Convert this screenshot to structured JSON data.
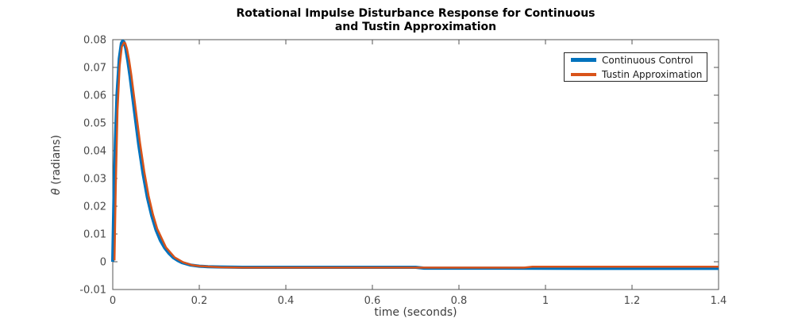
{
  "title": {
    "line1": "Rotational Impulse Disturbance Response for Continuous",
    "line2": "and Tustin Approximation"
  },
  "axes": {
    "x_label": "time (seconds)",
    "y_label_symbol": "θ",
    "y_label_rest": " (radians)",
    "axis_color": "#545454",
    "tick_label_color": "#494949"
  },
  "legend": {
    "entries": [
      {
        "label": "Continuous Control",
        "color": "#0072BD",
        "swatch_thickness": 5
      },
      {
        "label": "Tustin Approximation",
        "color": "#D95319",
        "swatch_thickness": 4
      }
    ]
  },
  "chart_data": {
    "type": "line",
    "title": "Rotational Impulse Disturbance Response for Continuous and Tustin Approximation",
    "xlabel": "time (seconds)",
    "ylabel": "θ (radians)",
    "xlim": [
      0,
      1.4
    ],
    "ylim": [
      -0.01,
      0.08
    ],
    "grid": false,
    "legend_position": "northeast",
    "x_ticks": {
      "values": [
        0,
        0.2,
        0.4,
        0.6,
        0.8,
        1,
        1.2,
        1.4
      ],
      "labels": [
        "0",
        "0.2",
        "0.4",
        "0.6",
        "0.8",
        "1",
        "1.2",
        "1.4"
      ]
    },
    "y_ticks": {
      "values": [
        -0.01,
        0,
        0.01,
        0.02,
        0.03,
        0.04,
        0.05,
        0.06,
        0.07,
        0.08
      ],
      "labels": [
        "-0.01",
        "0",
        "0.01",
        "0.02",
        "0.03",
        "0.04",
        "0.05",
        "0.06",
        "0.07",
        "0.08"
      ]
    },
    "series": [
      {
        "name": "Continuous Control",
        "slug": "continuous-control",
        "color": "#0072BD",
        "width": 4,
        "points": [
          [
            0,
            0
          ],
          [
            0.003,
            0.0245
          ],
          [
            0.006,
            0.0432
          ],
          [
            0.01,
            0.0604
          ],
          [
            0.015,
            0.0731
          ],
          [
            0.02,
            0.0787
          ],
          [
            0.023,
            0.0795
          ],
          [
            0.026,
            0.0791
          ],
          [
            0.03,
            0.077
          ],
          [
            0.035,
            0.0722
          ],
          [
            0.04,
            0.0668
          ],
          [
            0.05,
            0.0543
          ],
          [
            0.06,
            0.0422
          ],
          [
            0.07,
            0.0317
          ],
          [
            0.08,
            0.0232
          ],
          [
            0.09,
            0.0166
          ],
          [
            0.1,
            0.0115
          ],
          [
            0.11,
            0.0077
          ],
          [
            0.12,
            0.005
          ],
          [
            0.13,
            0.003
          ],
          [
            0.14,
            0.0015
          ],
          [
            0.15,
            0.0005
          ],
          [
            0.16,
            -0.0003
          ],
          [
            0.18,
            -0.0012
          ],
          [
            0.2,
            -0.0016
          ],
          [
            0.22,
            -0.0018
          ],
          [
            0.25,
            -0.0019
          ],
          [
            0.3,
            -0.002
          ],
          [
            0.4,
            -0.002
          ],
          [
            0.5,
            -0.002
          ],
          [
            0.6,
            -0.002
          ],
          [
            0.7,
            -0.002
          ],
          [
            0.72,
            -0.0023
          ],
          [
            0.9,
            -0.0023
          ],
          [
            1.1,
            -0.0024
          ],
          [
            1.4,
            -0.0024
          ]
        ]
      },
      {
        "name": "Tustin Approximation",
        "slug": "tustin-approximation",
        "color": "#D95319",
        "width": 2.5,
        "points": [
          [
            0.004,
            0.0005
          ],
          [
            0.007,
            0.027
          ],
          [
            0.011,
            0.0545
          ],
          [
            0.016,
            0.0705
          ],
          [
            0.021,
            0.0775
          ],
          [
            0.026,
            0.079
          ],
          [
            0.029,
            0.0787
          ],
          [
            0.033,
            0.0766
          ],
          [
            0.038,
            0.0725
          ],
          [
            0.043,
            0.0673
          ],
          [
            0.053,
            0.055
          ],
          [
            0.063,
            0.0429
          ],
          [
            0.073,
            0.0323
          ],
          [
            0.083,
            0.0237
          ],
          [
            0.093,
            0.017
          ],
          [
            0.103,
            0.0118
          ],
          [
            0.123,
            0.0052
          ],
          [
            0.143,
            0.0016
          ],
          [
            0.163,
            -0.0002
          ],
          [
            0.183,
            -0.0012
          ],
          [
            0.203,
            -0.0016
          ],
          [
            0.25,
            -0.002
          ],
          [
            0.3,
            -0.0021
          ],
          [
            0.5,
            -0.0021
          ],
          [
            0.7,
            -0.0021
          ],
          [
            0.95,
            -0.0021
          ],
          [
            0.97,
            -0.0018
          ],
          [
            1.2,
            -0.0018
          ],
          [
            1.4,
            -0.0018
          ]
        ]
      }
    ]
  }
}
